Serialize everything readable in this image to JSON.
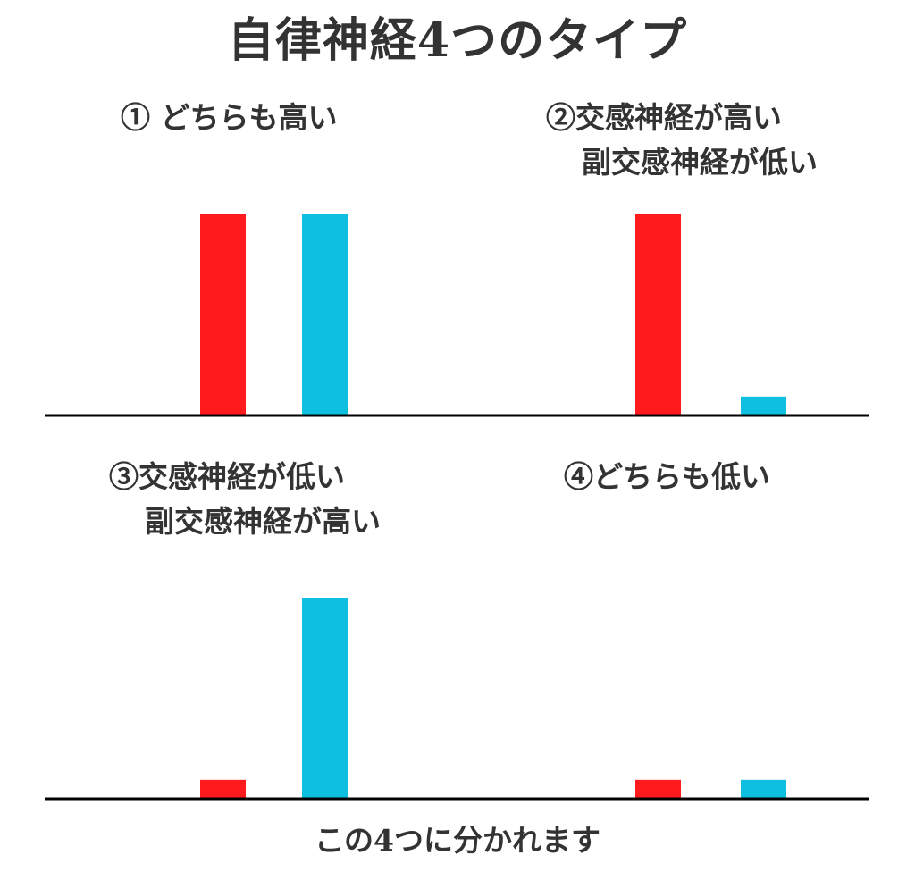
{
  "title": "自律神経4つのタイプ",
  "footer": "この4つに分かれます",
  "colors": {
    "sympathetic": "#ff1a1e",
    "parasympathetic": "#0ebfe0",
    "axis": "#000000"
  },
  "chart_data": [
    {
      "type": "bar",
      "label_lines": [
        "① どちらも高い"
      ],
      "values": [
        100,
        100
      ],
      "ylim": [
        0,
        100
      ]
    },
    {
      "type": "bar",
      "label_lines": [
        "②交感神経が高い",
        "副交感神経が低い"
      ],
      "values": [
        100,
        9
      ],
      "ylim": [
        0,
        100
      ]
    },
    {
      "type": "bar",
      "label_lines": [
        "③交感神経が低い",
        "副交感神経が高い"
      ],
      "values": [
        9,
        100
      ],
      "ylim": [
        0,
        100
      ]
    },
    {
      "type": "bar",
      "label_lines": [
        "④どちらも低い"
      ],
      "values": [
        9,
        9
      ],
      "ylim": [
        0,
        100
      ]
    }
  ]
}
